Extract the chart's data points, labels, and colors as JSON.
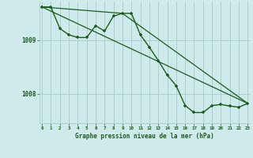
{
  "title": "Graphe pression niveau de la mer (hPa)",
  "bg_color": "#ceeaea",
  "grid_color": "#aacece",
  "line_color": "#1a5c1a",
  "x_ticks": [
    0,
    1,
    2,
    3,
    4,
    5,
    6,
    7,
    8,
    9,
    10,
    11,
    12,
    13,
    14,
    15,
    16,
    17,
    18,
    19,
    20,
    21,
    22,
    23
  ],
  "y_ticks": [
    1008,
    1009
  ],
  "xlim": [
    -0.3,
    23.3
  ],
  "ylim": [
    1007.45,
    1009.72
  ],
  "line1_x": [
    0,
    1,
    2,
    3,
    4,
    5,
    6,
    7,
    8,
    9,
    10,
    11,
    12,
    13,
    14,
    15,
    16,
    17,
    18,
    19,
    20,
    21,
    22,
    23
  ],
  "line1_y": [
    1009.62,
    1009.62,
    1009.22,
    1009.1,
    1009.05,
    1009.05,
    1009.27,
    1009.17,
    1009.45,
    1009.5,
    1009.5,
    1009.1,
    1008.87,
    1008.62,
    1008.35,
    1008.15,
    1007.78,
    1007.65,
    1007.65,
    1007.78,
    1007.8,
    1007.77,
    1007.75,
    1007.82
  ],
  "line2_x": [
    0,
    23
  ],
  "line2_y": [
    1009.62,
    1007.82
  ],
  "line3_x": [
    0,
    9,
    23
  ],
  "line3_y": [
    1009.62,
    1009.5,
    1007.82
  ]
}
